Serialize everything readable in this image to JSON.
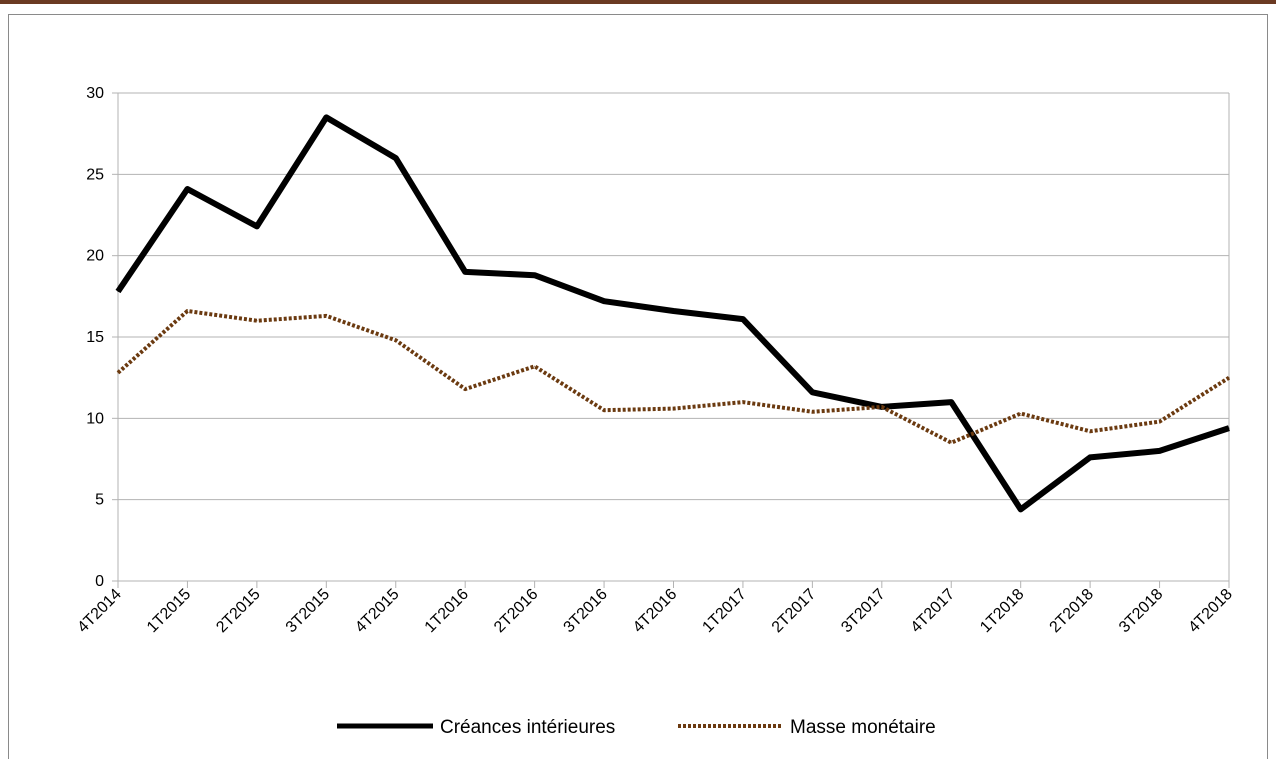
{
  "chart_data": {
    "type": "line",
    "title": "",
    "xlabel": "",
    "ylabel": "",
    "categories": [
      "4T2014",
      "1T2015",
      "2T2015",
      "3T2015",
      "4T2015",
      "1T2016",
      "2T2016",
      "3T2016",
      "4T2016",
      "1T2017",
      "2T2017",
      "3T2017",
      "4T2017",
      "1T2018",
      "2T2018",
      "3T2018",
      "4T2018"
    ],
    "ylim": [
      0,
      30
    ],
    "yticks": [
      "0",
      "5",
      "10",
      "15",
      "20",
      "25",
      "30"
    ],
    "grid": true,
    "legend_position": "bottom",
    "series": [
      {
        "name": "Créances intérieures",
        "color": "#000000",
        "style": "solid",
        "values": [
          17.8,
          24.1,
          21.8,
          28.5,
          26.0,
          19.0,
          18.8,
          17.2,
          16.6,
          16.1,
          11.6,
          10.7,
          11.0,
          4.4,
          7.6,
          8.0,
          9.4
        ]
      },
      {
        "name": "Masse monétaire",
        "color": "#6b3a10",
        "style": "dotted",
        "values": [
          12.8,
          16.6,
          16.0,
          16.3,
          14.8,
          11.8,
          13.2,
          10.5,
          10.6,
          11.0,
          10.4,
          10.7,
          8.5,
          10.3,
          9.2,
          9.8,
          12.5
        ]
      }
    ]
  }
}
